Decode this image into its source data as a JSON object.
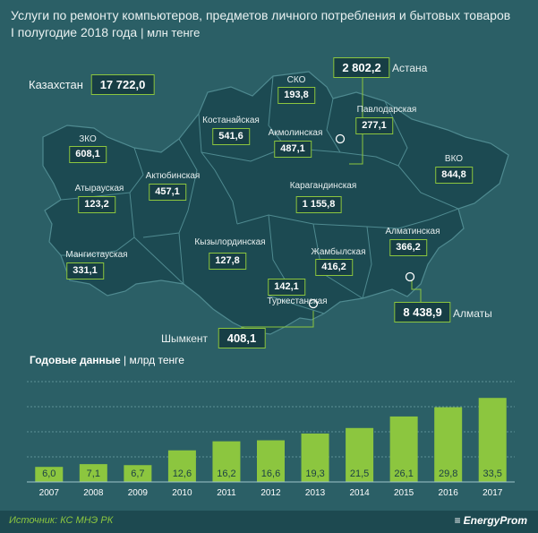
{
  "title": {
    "line1": "Услуги по ремонту компьютеров, предметов личного потребления и бытовых товаров",
    "line2": "I полугодие 2018 года",
    "unit": "| млн тенге"
  },
  "kazakhstan": {
    "label": "Казахстан",
    "value": "17 722,0"
  },
  "regions": [
    {
      "name": "СКО",
      "value": "193,8"
    },
    {
      "name": "Костанайская",
      "value": "541,6"
    },
    {
      "name": "Акмолинская",
      "value": "487,1"
    },
    {
      "name": "Павлодарская",
      "value": "277,1"
    },
    {
      "name": "ЗКО",
      "value": "608,1"
    },
    {
      "name": "Актюбинская",
      "value": "457,1"
    },
    {
      "name": "Атырауская",
      "value": "123,2"
    },
    {
      "name": "Карагандинская",
      "value": "1 155,8"
    },
    {
      "name": "ВКО",
      "value": "844,8"
    },
    {
      "name": "Мангистауская",
      "value": "331,1"
    },
    {
      "name": "Кызылординская",
      "value": "127,8"
    },
    {
      "name": "Жамбылская",
      "value": "416,2"
    },
    {
      "name": "Алматинская",
      "value": "366,2"
    },
    {
      "name": "Туркестанская",
      "value": "142,1"
    }
  ],
  "cities": [
    {
      "name": "Астана",
      "value": "2 802,2"
    },
    {
      "name": "Алматы",
      "value": "8 438,9"
    },
    {
      "name": "Шымкент",
      "value": "408,1"
    }
  ],
  "annual": {
    "title": "Годовые данные",
    "unit": "| млрд тенге"
  },
  "chart_data": {
    "type": "bar",
    "categories": [
      "2007",
      "2008",
      "2009",
      "2010",
      "2011",
      "2012",
      "2013",
      "2014",
      "2015",
      "2016",
      "2017"
    ],
    "values": [
      6.0,
      7.1,
      6.7,
      12.6,
      16.2,
      16.6,
      19.3,
      21.5,
      26.1,
      29.8,
      33.5
    ],
    "value_labels": [
      "6,0",
      "7,1",
      "6,7",
      "12,6",
      "16,2",
      "16,6",
      "19,3",
      "21,5",
      "26,1",
      "29,8",
      "33,5"
    ],
    "title": "Годовые данные",
    "ylabel": "млрд тенге",
    "ylim": [
      0,
      40
    ],
    "grid": true,
    "bar_color": "#8cc63f"
  },
  "footer": {
    "source": "Источник: КС МНЭ РК",
    "brand": "EnergyProm"
  },
  "colors": {
    "background": "#2b5f66",
    "map_fill": "#1c4a52",
    "accent": "#8cc63f"
  }
}
